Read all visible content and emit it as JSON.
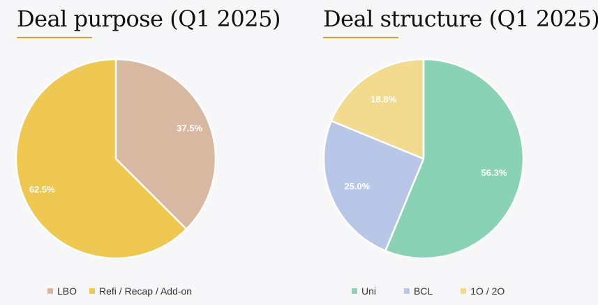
{
  "chart_data": [
    {
      "type": "pie",
      "title": "Deal purpose (Q1 2025)",
      "categories": [
        "LBO",
        "Refi / Recap / Add-on"
      ],
      "values": [
        37.5,
        62.5
      ],
      "labels": [
        "37.5%",
        "62.5%"
      ],
      "colors": [
        "#d9b8a2",
        "#eec853"
      ],
      "legend_position": "bottom"
    },
    {
      "type": "pie",
      "title": "Deal structure (Q1 2025)",
      "categories": [
        "Uni",
        "BCL",
        "1O / 2O"
      ],
      "values": [
        56.3,
        25.0,
        18.8
      ],
      "labels": [
        "56.3%",
        "25.0%",
        "18.8%"
      ],
      "colors": [
        "#8ad2b5",
        "#b8c6e8",
        "#f2da8e"
      ],
      "legend_position": "bottom"
    }
  ],
  "colors": {
    "accent": "#c9a227",
    "background": "#f7f7f9"
  }
}
